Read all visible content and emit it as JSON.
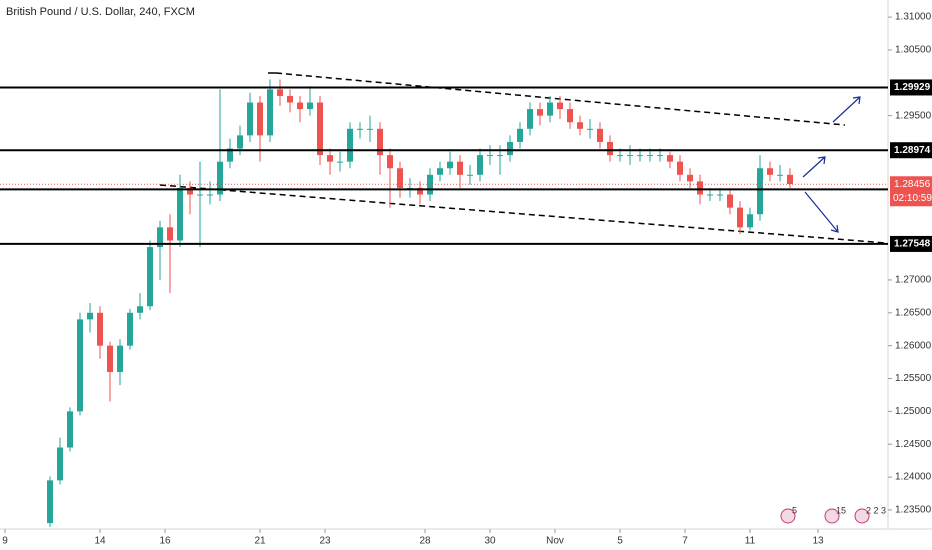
{
  "chart_data": {
    "type": "candlestick",
    "title": "British Pound / U.S. Dollar, 240, FXCM",
    "x": [
      10,
      12,
      14,
      16,
      18,
      20,
      22,
      24,
      26,
      28,
      30,
      32,
      34,
      36,
      38,
      40,
      42,
      44,
      46,
      48,
      50,
      52,
      54,
      56,
      58,
      60,
      62,
      64,
      66,
      68,
      70,
      72,
      74,
      76,
      78,
      80,
      82,
      84,
      86,
      88,
      90,
      92,
      94,
      96,
      98,
      100,
      102,
      104,
      106,
      108,
      110,
      112,
      114,
      116,
      118,
      120,
      122,
      124,
      126,
      128,
      130,
      132,
      134,
      136,
      138,
      140,
      142,
      144,
      146,
      148,
      150,
      152,
      154,
      156,
      158
    ],
    "open": [
      1.233,
      1.2395,
      1.2445,
      1.25,
      1.264,
      1.265,
      1.26,
      1.256,
      1.26,
      1.265,
      1.266,
      1.275,
      1.278,
      1.276,
      1.284,
      1.283,
      1.283,
      1.283,
      1.288,
      1.29,
      1.292,
      1.297,
      1.292,
      1.299,
      1.298,
      1.297,
      1.296,
      1.297,
      1.289,
      1.288,
      1.288,
      1.293,
      1.293,
      1.293,
      1.289,
      1.287,
      1.284,
      1.284,
      1.283,
      1.286,
      1.287,
      1.288,
      1.286,
      1.286,
      1.289,
      1.289,
      1.289,
      1.291,
      1.293,
      1.296,
      1.295,
      1.297,
      1.296,
      1.294,
      1.293,
      1.293,
      1.291,
      1.289,
      1.289,
      1.289,
      1.289,
      1.289,
      1.289,
      1.288,
      1.286,
      1.285,
      1.283,
      1.283,
      1.283,
      1.281,
      1.278,
      1.28,
      1.287,
      1.286,
      1.286
    ],
    "high": [
      1.2401,
      1.246,
      1.2506,
      1.265,
      1.2665,
      1.266,
      1.2606,
      1.261,
      1.2656,
      1.268,
      1.276,
      1.279,
      1.28,
      1.286,
      1.285,
      1.288,
      1.285,
      1.299,
      1.2915,
      1.2935,
      1.2985,
      1.298,
      1.3005,
      1.3005,
      1.299,
      1.298,
      1.2995,
      1.298,
      1.29,
      1.2895,
      1.294,
      1.294,
      1.295,
      1.294,
      1.29,
      1.288,
      1.2855,
      1.285,
      1.287,
      1.288,
      1.2895,
      1.289,
      1.2875,
      1.29,
      1.2905,
      1.2905,
      1.292,
      1.294,
      1.297,
      1.297,
      1.298,
      1.298,
      1.297,
      1.295,
      1.2945,
      1.294,
      1.292,
      1.29,
      1.2905,
      1.29,
      1.29,
      1.29,
      1.2895,
      1.289,
      1.287,
      1.286,
      1.284,
      1.284,
      1.284,
      1.282,
      1.281,
      1.289,
      1.288,
      1.2875,
      1.287
    ],
    "low": [
      1.2324,
      1.2389,
      1.2439,
      1.2494,
      1.262,
      1.258,
      1.2515,
      1.254,
      1.2594,
      1.264,
      1.2654,
      1.27,
      1.268,
      1.275,
      1.28,
      1.275,
      1.2815,
      1.282,
      1.287,
      1.289,
      1.291,
      1.288,
      1.291,
      1.2965,
      1.2955,
      1.294,
      1.295,
      1.2875,
      1.286,
      1.2865,
      1.287,
      1.2915,
      1.291,
      1.286,
      1.281,
      1.2825,
      1.2825,
      1.2815,
      1.282,
      1.285,
      1.286,
      1.284,
      1.2845,
      1.285,
      1.2875,
      1.286,
      1.288,
      1.29,
      1.292,
      1.2935,
      1.294,
      1.2945,
      1.293,
      1.292,
      1.2915,
      1.29,
      1.288,
      1.288,
      1.2875,
      1.288,
      1.288,
      1.288,
      1.287,
      1.285,
      1.284,
      1.2815,
      1.282,
      1.282,
      1.28,
      1.277,
      1.2775,
      1.279,
      1.285,
      1.285,
      1.284
    ],
    "close": [
      1.2395,
      1.2445,
      1.25,
      1.264,
      1.265,
      1.26,
      1.256,
      1.26,
      1.265,
      1.266,
      1.275,
      1.278,
      1.276,
      1.284,
      1.283,
      1.283,
      1.283,
      1.288,
      1.29,
      1.292,
      1.297,
      1.292,
      1.299,
      1.298,
      1.297,
      1.296,
      1.297,
      1.289,
      1.288,
      1.288,
      1.293,
      1.293,
      1.293,
      1.289,
      1.287,
      1.284,
      1.284,
      1.283,
      1.286,
      1.287,
      1.288,
      1.286,
      1.286,
      1.289,
      1.289,
      1.289,
      1.291,
      1.293,
      1.296,
      1.295,
      1.297,
      1.296,
      1.294,
      1.293,
      1.293,
      1.291,
      1.289,
      1.289,
      1.289,
      1.289,
      1.289,
      1.289,
      1.288,
      1.286,
      1.285,
      1.283,
      1.283,
      1.283,
      1.281,
      1.278,
      1.28,
      1.287,
      1.286,
      1.286,
      1.2846
    ],
    "up_color": "#26a69a",
    "down_color": "#ef5350",
    "xlim": [
      0,
      177.6
    ],
    "xticks": [
      {
        "value": 1,
        "label": "9"
      },
      {
        "value": 20,
        "label": "14"
      },
      {
        "value": 33,
        "label": "16"
      },
      {
        "value": 52,
        "label": "21"
      },
      {
        "value": 65,
        "label": "23"
      },
      {
        "value": 85,
        "label": "28"
      },
      {
        "value": 98,
        "label": "30"
      },
      {
        "value": 111,
        "label": "Nov"
      },
      {
        "value": 124,
        "label": "5"
      },
      {
        "value": 137,
        "label": "7"
      },
      {
        "value": 150,
        "label": "11"
      },
      {
        "value": 163.6,
        "label": "13"
      }
    ],
    "ylim": [
      1.2321,
      1.3126
    ],
    "yticks": [
      {
        "value": 1.31,
        "label": "1.31000"
      },
      {
        "value": 1.305,
        "label": "1.30500"
      },
      {
        "value": 1.295,
        "label": "1.29500"
      },
      {
        "value": 1.27,
        "label": "1.27000"
      },
      {
        "value": 1.265,
        "label": "1.26500"
      },
      {
        "value": 1.26,
        "label": "1.26000"
      },
      {
        "value": 1.255,
        "label": "1.25500"
      },
      {
        "value": 1.25,
        "label": "1.25000"
      },
      {
        "value": 1.245,
        "label": "1.24500"
      },
      {
        "value": 1.24,
        "label": "1.24000"
      },
      {
        "value": 1.235,
        "label": "1.23500"
      }
    ],
    "levels": [
      1.29929,
      1.28974,
      1.28378,
      1.27548
    ],
    "level_color": "#000000",
    "last_price": 1.28456,
    "countdown": "02:10:59",
    "price_color": "#ef5350",
    "badges": [
      "5",
      "15",
      "2 2 3"
    ]
  }
}
